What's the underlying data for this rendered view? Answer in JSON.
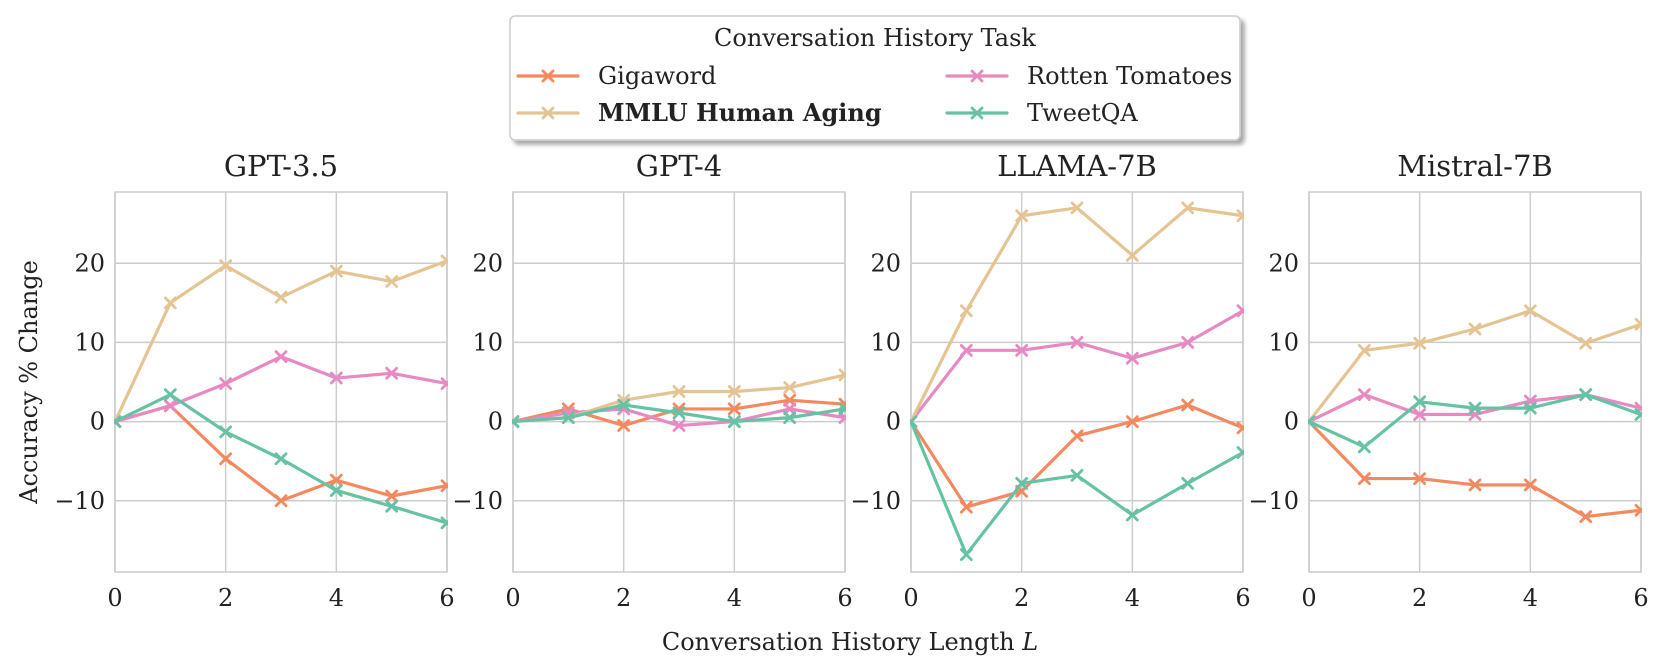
{
  "figure": {
    "xlabel_text": "Conversation History Length",
    "xlabel_var": "L",
    "ylabel": "Accuracy % Change"
  },
  "legend": {
    "title": "Conversation History Task",
    "entries": [
      {
        "name": "Gigaword",
        "color": "#F4895F",
        "bold": false
      },
      {
        "name": "Rotten Tomatoes",
        "color": "#E78AC3",
        "bold": false
      },
      {
        "name": "MMLU Human Aging",
        "color": "#E5C494",
        "bold": true
      },
      {
        "name": "TweetQA",
        "color": "#66C2A5",
        "bold": false
      }
    ]
  },
  "chart_data": [
    {
      "type": "line",
      "title": "GPT-3.5",
      "xlabel": "Conversation History Length L",
      "ylabel": "Accuracy % Change",
      "x": [
        0,
        1,
        2,
        3,
        4,
        5,
        6
      ],
      "xlim": [
        0,
        6
      ],
      "ylim": [
        -19,
        29
      ],
      "xticks": [
        "0",
        "2",
        "4",
        "6"
      ],
      "yticks": [
        "−10",
        "0",
        "10",
        "20"
      ],
      "series": [
        {
          "name": "Gigaword",
          "values": [
            0,
            2,
            -4.7,
            -10,
            -7.4,
            -9.4,
            -8.1
          ]
        },
        {
          "name": "Rotten Tomatoes",
          "values": [
            0,
            2,
            4.8,
            8.2,
            5.5,
            6.1,
            4.8
          ]
        },
        {
          "name": "MMLU Human Aging",
          "values": [
            0,
            15,
            19.7,
            15.7,
            19,
            17.7,
            20.3
          ]
        },
        {
          "name": "TweetQA",
          "values": [
            0,
            3.4,
            -1.3,
            -4.7,
            -8.7,
            -10.7,
            -12.8
          ]
        }
      ]
    },
    {
      "type": "line",
      "title": "GPT-4",
      "xlabel": "Conversation History Length L",
      "ylabel": "Accuracy % Change",
      "x": [
        0,
        1,
        2,
        3,
        4,
        5,
        6
      ],
      "xlim": [
        0,
        6
      ],
      "ylim": [
        -19,
        29
      ],
      "xticks": [
        "0",
        "2",
        "4",
        "6"
      ],
      "yticks": [
        "−10",
        "0",
        "10",
        "20"
      ],
      "series": [
        {
          "name": "Gigaword",
          "values": [
            0,
            1.6,
            -0.5,
            1.6,
            1.6,
            2.7,
            2.2
          ]
        },
        {
          "name": "Rotten Tomatoes",
          "values": [
            0,
            1.1,
            1.6,
            -0.5,
            0,
            1.6,
            0.5
          ]
        },
        {
          "name": "MMLU Human Aging",
          "values": [
            0,
            0.5,
            2.7,
            3.8,
            3.8,
            4.3,
            5.9
          ]
        },
        {
          "name": "TweetQA",
          "values": [
            0,
            0.5,
            2.1,
            1.1,
            0,
            0.5,
            1.6
          ]
        }
      ]
    },
    {
      "type": "line",
      "title": "LLAMA-7B",
      "xlabel": "Conversation History Length L",
      "ylabel": "Accuracy % Change",
      "x": [
        0,
        1,
        2,
        3,
        4,
        5,
        6
      ],
      "xlim": [
        0,
        6
      ],
      "ylim": [
        -19,
        29
      ],
      "xticks": [
        "0",
        "2",
        "4",
        "6"
      ],
      "yticks": [
        "−10",
        "0",
        "10",
        "20"
      ],
      "series": [
        {
          "name": "Gigaword",
          "values": [
            0,
            -10.8,
            -8.8,
            -1.8,
            0,
            2.1,
            -0.8
          ]
        },
        {
          "name": "Rotten Tomatoes",
          "values": [
            0,
            9,
            9,
            10,
            8,
            10,
            14
          ]
        },
        {
          "name": "MMLU Human Aging",
          "values": [
            0,
            14,
            26,
            27,
            21,
            27,
            26
          ]
        },
        {
          "name": "TweetQA",
          "values": [
            0,
            -16.8,
            -7.8,
            -6.8,
            -11.8,
            -7.8,
            -3.9
          ]
        }
      ]
    },
    {
      "type": "line",
      "title": "Mistral-7B",
      "xlabel": "Conversation History Length L",
      "ylabel": "Accuracy % Change",
      "x": [
        0,
        1,
        2,
        3,
        4,
        5,
        6
      ],
      "xlim": [
        0,
        6
      ],
      "ylim": [
        -19,
        29
      ],
      "xticks": [
        "0",
        "2",
        "4",
        "6"
      ],
      "yticks": [
        "−10",
        "0",
        "10",
        "20"
      ],
      "series": [
        {
          "name": "Gigaword",
          "values": [
            0,
            -7.2,
            -7.2,
            -8,
            -8,
            -12,
            -11.2
          ]
        },
        {
          "name": "Rotten Tomatoes",
          "values": [
            0,
            3.4,
            0.9,
            0.9,
            2.6,
            3.4,
            1.7
          ]
        },
        {
          "name": "MMLU Human Aging",
          "values": [
            0,
            9,
            9.9,
            11.7,
            14,
            9.9,
            12.3
          ]
        },
        {
          "name": "TweetQA",
          "values": [
            0,
            -3.2,
            2.5,
            1.7,
            1.7,
            3.4,
            0.9
          ]
        }
      ]
    }
  ]
}
